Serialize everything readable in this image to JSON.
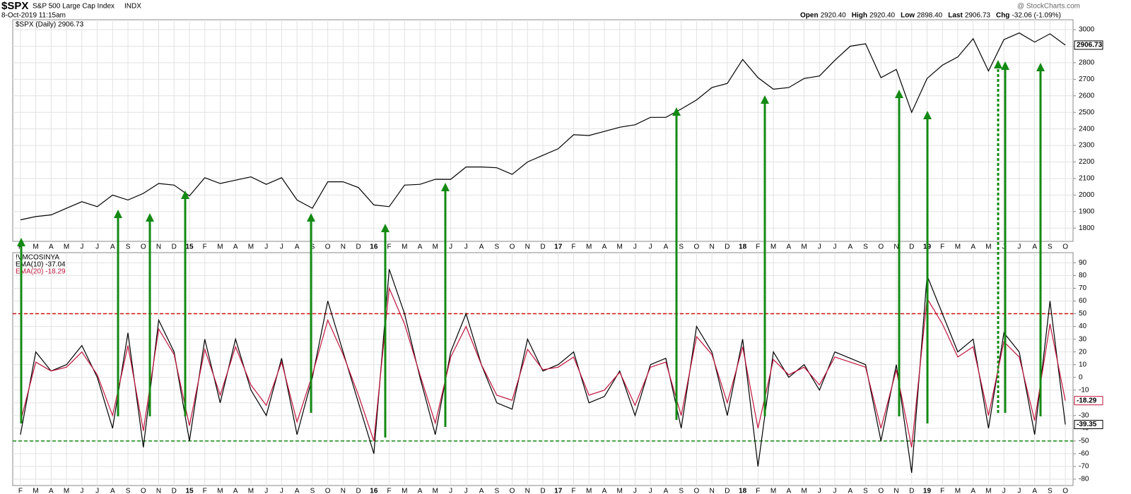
{
  "header": {
    "symbol": "$SPX",
    "name": "S&P 500 Large Cap Index",
    "exchange": "INDX",
    "timestamp": "8-Oct-2019 11:15am",
    "quote": [
      {
        "label": "Open",
        "value": "2920.40"
      },
      {
        "label": "High",
        "value": "2920.40"
      },
      {
        "label": "Low",
        "value": "2898.40"
      },
      {
        "label": "Last",
        "value": "2906.73"
      },
      {
        "label": "Chg",
        "value": "-32.06 (-1.09%)"
      }
    ],
    "watermark": "@ StockCharts.com"
  },
  "chart_data": [
    {
      "type": "line",
      "categories": [
        "F",
        "M",
        "A",
        "M",
        "J",
        "J",
        "A",
        "S",
        "O",
        "N",
        "D",
        "15",
        "F",
        "M",
        "A",
        "M",
        "J",
        "J",
        "A",
        "S",
        "O",
        "N",
        "D",
        "16",
        "F",
        "M",
        "A",
        "M",
        "J",
        "J",
        "A",
        "S",
        "O",
        "N",
        "D",
        "17",
        "F",
        "M",
        "A",
        "M",
        "J",
        "J",
        "A",
        "S",
        "O",
        "N",
        "D",
        "18",
        "F",
        "M",
        "A",
        "M",
        "J",
        "J",
        "A",
        "S",
        "O",
        "N",
        "D",
        "19",
        "F",
        "M",
        "A",
        "M",
        "J",
        "J",
        "A",
        "S",
        "O"
      ],
      "series": [
        {
          "name": "$SPX (Daily) 2906.73",
          "color": "#000000",
          "values": [
            1850,
            1870,
            1880,
            1920,
            1960,
            1930,
            2000,
            1970,
            2010,
            2070,
            2060,
            1995,
            2105,
            2070,
            2090,
            2110,
            2065,
            2105,
            1970,
            1920,
            2080,
            2080,
            2045,
            1940,
            1930,
            2060,
            2065,
            2095,
            2095,
            2170,
            2170,
            2165,
            2125,
            2200,
            2240,
            2280,
            2365,
            2360,
            2385,
            2410,
            2425,
            2470,
            2470,
            2520,
            2575,
            2650,
            2675,
            2820,
            2710,
            2640,
            2650,
            2705,
            2720,
            2815,
            2900,
            2915,
            2710,
            2760,
            2500,
            2705,
            2785,
            2835,
            2945,
            2750,
            2940,
            2980,
            2925,
            2975,
            2906.73
          ]
        }
      ],
      "last_label": "2906.73",
      "ylim": [
        1720,
        3060
      ],
      "yticks": [
        1800,
        1900,
        2000,
        2100,
        2200,
        2300,
        2400,
        2500,
        2600,
        2700,
        2800,
        2900,
        3000
      ],
      "grid": true
    },
    {
      "type": "line",
      "title": "!VMCOSINYA",
      "categories": [
        "F",
        "M",
        "A",
        "M",
        "J",
        "J",
        "A",
        "S",
        "O",
        "N",
        "D",
        "15",
        "F",
        "M",
        "A",
        "M",
        "J",
        "J",
        "A",
        "S",
        "O",
        "N",
        "D",
        "16",
        "F",
        "M",
        "A",
        "M",
        "J",
        "J",
        "A",
        "S",
        "O",
        "N",
        "D",
        "17",
        "F",
        "M",
        "A",
        "M",
        "J",
        "J",
        "A",
        "S",
        "O",
        "N",
        "D",
        "18",
        "F",
        "M",
        "A",
        "M",
        "J",
        "J",
        "A",
        "S",
        "O",
        "N",
        "D",
        "19",
        "F",
        "M",
        "A",
        "M",
        "J",
        "J",
        "A",
        "S",
        "O"
      ],
      "series": [
        {
          "name": "EMA(10) -37.04",
          "color": "#000000",
          "values": [
            -45,
            20,
            5,
            10,
            25,
            0,
            -40,
            35,
            -55,
            45,
            20,
            -50,
            30,
            -20,
            30,
            -10,
            -30,
            15,
            -45,
            0,
            60,
            20,
            -20,
            -60,
            85,
            50,
            0,
            -45,
            20,
            50,
            10,
            -20,
            -25,
            30,
            5,
            10,
            20,
            -20,
            -15,
            5,
            -30,
            10,
            15,
            -40,
            40,
            20,
            -30,
            30,
            -70,
            20,
            0,
            10,
            -10,
            20,
            15,
            10,
            -50,
            10,
            -75,
            80,
            50,
            20,
            30,
            -40,
            35,
            20,
            -45,
            60,
            -37.04
          ]
        },
        {
          "name": "EMA(20) -18.29",
          "color": "#c0143c",
          "values": [
            -35,
            12,
            5,
            8,
            20,
            2,
            -30,
            25,
            -42,
            38,
            18,
            -38,
            22,
            -14,
            24,
            -6,
            -22,
            12,
            -35,
            2,
            45,
            18,
            -14,
            -50,
            70,
            42,
            2,
            -36,
            16,
            40,
            10,
            -14,
            -18,
            22,
            6,
            8,
            16,
            -14,
            -10,
            4,
            -22,
            8,
            12,
            -30,
            32,
            18,
            -20,
            24,
            -40,
            14,
            2,
            8,
            -6,
            16,
            12,
            8,
            -40,
            6,
            -55,
            62,
            42,
            16,
            24,
            -30,
            28,
            16,
            -34,
            42,
            -18.29
          ]
        }
      ],
      "tags": [
        "-18.29",
        "-39.35"
      ],
      "ylim": [
        -85,
        98
      ],
      "yticks": [
        -80,
        -70,
        -60,
        -50,
        -40,
        -30,
        -20,
        -10,
        0,
        10,
        20,
        30,
        40,
        50,
        60,
        70,
        80,
        90
      ],
      "grid": true,
      "reference_lines": [
        {
          "value": 50,
          "color": "#d01010"
        },
        {
          "value": -50,
          "color": "#138a13"
        }
      ]
    }
  ]
}
